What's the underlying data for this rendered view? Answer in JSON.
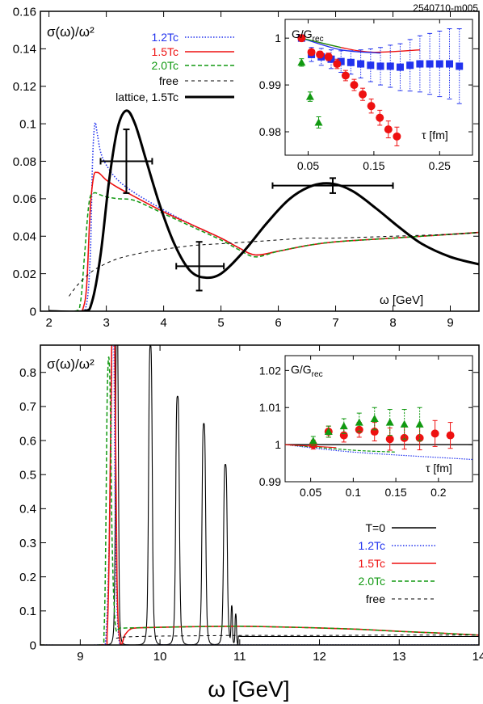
{
  "figure_id": "2540710-m005",
  "colors": {
    "blue": "#2233ee",
    "red": "#ee1111",
    "green": "#119911",
    "black": "#000000"
  },
  "chart_data": [
    {
      "type": "line",
      "panel": "top",
      "title": "σ(ω)/ω²",
      "ylabel": "σ(ω)/ω²",
      "xlabel": "ω [GeV]",
      "xlim": [
        1.85,
        9.5
      ],
      "ylim": [
        0,
        0.16
      ],
      "xticks": [
        2,
        3,
        4,
        5,
        6,
        7,
        8,
        9
      ],
      "yticks": [
        0,
        0.02,
        0.04,
        0.06,
        0.08,
        0.1,
        0.12,
        0.14,
        0.16
      ],
      "legend_position": "top-left",
      "series": [
        {
          "name": "1.2Tc",
          "color": "blue",
          "style": "dotted",
          "x": [
            2.0,
            2.5,
            2.65,
            2.72,
            2.76,
            2.8,
            2.84,
            2.9,
            3.0,
            3.2,
            3.5,
            4.0,
            4.5,
            5.0,
            5.3,
            5.6,
            6.0,
            6.5,
            7.0,
            8.0,
            9.0,
            9.5
          ],
          "y": [
            0,
            0,
            0.003,
            0.03,
            0.08,
            0.1,
            0.095,
            0.085,
            0.078,
            0.07,
            0.063,
            0.054,
            0.046,
            0.039,
            0.034,
            0.03,
            0.032,
            0.035,
            0.037,
            0.039,
            0.041,
            0.042
          ]
        },
        {
          "name": "1.5Tc",
          "color": "red",
          "style": "solid",
          "x": [
            2.0,
            2.5,
            2.6,
            2.66,
            2.72,
            2.78,
            2.84,
            2.9,
            3.0,
            3.2,
            3.5,
            4.0,
            4.5,
            5.0,
            5.3,
            5.6,
            6.0,
            6.5,
            7.0,
            8.0,
            9.0,
            9.5
          ],
          "y": [
            0,
            0,
            0.002,
            0.015,
            0.055,
            0.072,
            0.074,
            0.073,
            0.07,
            0.066,
            0.061,
            0.053,
            0.046,
            0.039,
            0.034,
            0.03,
            0.032,
            0.035,
            0.037,
            0.039,
            0.041,
            0.042
          ]
        },
        {
          "name": "2.0Tc",
          "color": "green",
          "style": "dashed",
          "x": [
            2.0,
            2.45,
            2.55,
            2.62,
            2.7,
            2.78,
            2.9,
            3.0,
            3.2,
            3.5,
            4.0,
            4.5,
            5.0,
            5.3,
            5.6,
            6.0,
            6.5,
            7.0,
            8.0,
            9.0,
            9.5
          ],
          "y": [
            0,
            0,
            0.005,
            0.03,
            0.058,
            0.063,
            0.062,
            0.061,
            0.06,
            0.059,
            0.052,
            0.045,
            0.038,
            0.033,
            0.029,
            0.032,
            0.035,
            0.037,
            0.039,
            0.041,
            0.042
          ]
        },
        {
          "name": "free",
          "color": "black",
          "style": "thin-dashed",
          "x": [
            2.35,
            2.5,
            2.7,
            2.9,
            3.2,
            3.6,
            4.0,
            4.5,
            5.0,
            5.5,
            6.0,
            6.5,
            7.0,
            8.0,
            9.0,
            9.5
          ],
          "y": [
            0.008,
            0.014,
            0.02,
            0.024,
            0.028,
            0.031,
            0.033,
            0.035,
            0.036,
            0.037,
            0.038,
            0.039,
            0.039,
            0.04,
            0.041,
            0.042
          ]
        },
        {
          "name": "lattice, 1.5Tc",
          "color": "black",
          "style": "thick",
          "x": [
            2.0,
            2.6,
            2.75,
            2.9,
            3.05,
            3.2,
            3.35,
            3.5,
            3.7,
            3.95,
            4.2,
            4.45,
            4.7,
            5.0,
            5.4,
            5.8,
            6.2,
            6.6,
            6.95,
            7.3,
            7.7,
            8.1,
            8.5,
            9.0,
            9.5
          ],
          "y": [
            0,
            0,
            0.005,
            0.03,
            0.07,
            0.098,
            0.107,
            0.1,
            0.08,
            0.055,
            0.035,
            0.022,
            0.018,
            0.02,
            0.032,
            0.047,
            0.06,
            0.067,
            0.068,
            0.064,
            0.055,
            0.045,
            0.036,
            0.029,
            0.025
          ]
        }
      ],
      "error_crosses": [
        {
          "x": 3.35,
          "y": 0.08,
          "xerr": [
            2.9,
            3.8
          ],
          "yerr": [
            0.063,
            0.097
          ]
        },
        {
          "x": 4.62,
          "y": 0.024,
          "xerr": [
            4.22,
            5.05
          ],
          "yerr": [
            0.011,
            0.037
          ]
        },
        {
          "x": 6.95,
          "y": 0.067,
          "xerr": [
            5.9,
            8.0
          ],
          "yerr": [
            0.063,
            0.071
          ]
        }
      ],
      "inset": {
        "type": "scatter",
        "ylabel": "G/G",
        "ylabel_sub": "rec",
        "xlabel": "τ [fm]",
        "xlim": [
          0.015,
          0.3
        ],
        "ylim": [
          0.975,
          1.004
        ],
        "xticks": [
          0.05,
          0.15,
          0.25
        ],
        "yticks": [
          0.98,
          0.99,
          1
        ],
        "series": [
          {
            "name": "1.2Tc",
            "color": "blue",
            "marker": "square",
            "x": [
              0.04,
              0.055,
              0.07,
              0.085,
              0.1,
              0.115,
              0.13,
              0.145,
              0.16,
              0.175,
              0.19,
              0.205,
              0.22,
              0.235,
              0.25,
              0.265,
              0.28
            ],
            "y": [
              1.0,
              0.9965,
              0.996,
              0.9955,
              0.995,
              0.9948,
              0.9945,
              0.9942,
              0.994,
              0.994,
              0.9938,
              0.9942,
              0.9945,
              0.9945,
              0.9945,
              0.9945,
              0.994
            ],
            "err": [
              0.0005,
              0.0015,
              0.0018,
              0.002,
              0.0023,
              0.0025,
              0.003,
              0.0035,
              0.004,
              0.0045,
              0.005,
              0.0055,
              0.006,
              0.0065,
              0.007,
              0.0075,
              0.008
            ]
          },
          {
            "name": "1.5Tc",
            "color": "red",
            "marker": "circle",
            "x": [
              0.04,
              0.055,
              0.068,
              0.081,
              0.094,
              0.107,
              0.12,
              0.133,
              0.146,
              0.159,
              0.172,
              0.185
            ],
            "y": [
              1.0,
              0.997,
              0.9965,
              0.996,
              0.9945,
              0.992,
              0.99,
              0.988,
              0.9855,
              0.983,
              0.9805,
              0.979
            ],
            "err": [
              0.0004,
              0.0006,
              0.0007,
              0.0008,
              0.001,
              0.0011,
              0.0012,
              0.0013,
              0.0015,
              0.0016,
              0.0018,
              0.002
            ]
          },
          {
            "name": "2.0Tc",
            "color": "green",
            "marker": "triangle",
            "x": [
              0.04,
              0.053,
              0.066
            ],
            "y": [
              0.9948,
              0.9875,
              0.982
            ],
            "err": [
              0.0008,
              0.001,
              0.0012
            ]
          }
        ],
        "lines": [
          {
            "color": "red",
            "x": [
              0.04,
              0.1,
              0.15,
              0.22
            ],
            "y": [
              1.0,
              0.998,
              0.997,
              0.9975
            ]
          },
          {
            "color": "blue",
            "x": [
              0.04,
              0.1,
              0.16
            ],
            "y": [
              1.0,
              0.9975,
              0.9968
            ]
          },
          {
            "color": "green",
            "x": [
              0.04,
              0.1
            ],
            "y": [
              1.0,
              0.998
            ]
          }
        ]
      }
    },
    {
      "type": "line",
      "panel": "bottom",
      "title": "σ(ω)/ω²",
      "ylabel": "σ(ω)/ω²",
      "xlabel": "ω [GeV]",
      "xlim": [
        8.5,
        14
      ],
      "ylim": [
        0,
        0.88
      ],
      "xticks": [
        9,
        10,
        11,
        12,
        13,
        14
      ],
      "yticks": [
        0,
        0.1,
        0.2,
        0.3,
        0.4,
        0.5,
        0.6,
        0.7,
        0.8
      ],
      "legend_position": "bottom-right",
      "series": [
        {
          "name": "T=0",
          "color": "black",
          "style": "solid",
          "peaks": [
            {
              "x": 9.46,
              "h": 0.95,
              "w": 0.02
            },
            {
              "x": 9.88,
              "h": 0.88,
              "w": 0.025
            },
            {
              "x": 10.22,
              "h": 0.73,
              "w": 0.025
            },
            {
              "x": 10.55,
              "h": 0.65,
              "w": 0.025
            },
            {
              "x": 10.82,
              "h": 0.53,
              "w": 0.025
            },
            {
              "x": 10.9,
              "h": 0.11,
              "w": 0.01
            },
            {
              "x": 10.95,
              "h": 0.09,
              "w": 0.01
            }
          ],
          "continuum": {
            "start": 10.98,
            "y": 0.025
          }
        },
        {
          "name": "1.2Tc",
          "color": "blue",
          "style": "dotted",
          "x": [
            8.5,
            9.2,
            9.32,
            9.38,
            9.4,
            9.42,
            9.44,
            9.48,
            9.6,
            10.0,
            11.0,
            12.0,
            13.0,
            14.0
          ],
          "y": [
            0,
            0,
            0.02,
            0.5,
            0.95,
            0.95,
            0.4,
            0.03,
            0.0,
            0.0,
            0.0,
            0.0,
            0.0,
            0.0
          ]
        },
        {
          "name": "1.5Tc",
          "color": "red",
          "style": "solid",
          "x": [
            8.5,
            9.25,
            9.34,
            9.38,
            9.4,
            9.43,
            9.46,
            9.5,
            9.56,
            9.62,
            9.7,
            10.0,
            10.5,
            11.0,
            11.5,
            12.0,
            12.5,
            13.0,
            13.5,
            14.0
          ],
          "y": [
            0,
            0,
            0.05,
            0.6,
            0.95,
            0.95,
            0.2,
            0.01,
            0.03,
            0.045,
            0.05,
            0.052,
            0.054,
            0.055,
            0.053,
            0.05,
            0.046,
            0.04,
            0.035,
            0.029
          ]
        },
        {
          "name": "2.0Tc",
          "color": "green",
          "style": "dashed",
          "x": [
            8.5,
            9.22,
            9.3,
            9.34,
            9.37,
            9.4,
            9.44,
            9.5,
            9.6,
            10.0,
            10.5,
            11.0,
            11.5,
            12.0,
            12.5,
            13.0,
            13.5,
            14.0
          ],
          "y": [
            0,
            0,
            0.05,
            0.75,
            0.79,
            0.3,
            0.06,
            0.05,
            0.05,
            0.052,
            0.054,
            0.055,
            0.053,
            0.05,
            0.046,
            0.04,
            0.035,
            0.029
          ]
        },
        {
          "name": "free",
          "color": "black",
          "style": "thin-dashed",
          "x": [
            9.45,
            9.6,
            10.0,
            10.5,
            11.0,
            12.0,
            13.0,
            14.0
          ],
          "y": [
            0.02,
            0.024,
            0.026,
            0.027,
            0.028,
            0.028,
            0.029,
            0.029
          ]
        }
      ],
      "inset": {
        "type": "scatter",
        "ylabel": "G/G",
        "ylabel_sub": "rec",
        "xlabel": "τ [fm]",
        "xlim": [
          0.02,
          0.24
        ],
        "ylim": [
          0.99,
          1.024
        ],
        "xticks": [
          0.05,
          0.1,
          0.15,
          0.2
        ],
        "yticks": [
          0.99,
          1,
          1.01,
          1.02
        ],
        "series": [
          {
            "name": "1.5Tc",
            "color": "red",
            "marker": "circle",
            "x": [
              0.053,
              0.071,
              0.089,
              0.107,
              0.125,
              0.143,
              0.16,
              0.178,
              0.196,
              0.214
            ],
            "y": [
              1.0,
              1.0035,
              1.0025,
              1.004,
              1.0035,
              1.0015,
              1.0018,
              1.0018,
              1.003,
              1.0025
            ],
            "err": [
              0.0012,
              0.0015,
              0.0018,
              0.002,
              0.0025,
              0.003,
              0.003,
              0.0032,
              0.0035,
              0.0035
            ]
          },
          {
            "name": "2.0Tc",
            "color": "green",
            "marker": "triangle",
            "x": [
              0.053,
              0.071,
              0.089,
              0.107,
              0.125,
              0.143,
              0.16,
              0.178
            ],
            "y": [
              1.001,
              1.0035,
              1.005,
              1.006,
              1.007,
              1.006,
              1.0055,
              1.0055
            ],
            "err": [
              0.0012,
              0.0015,
              0.002,
              0.0025,
              0.003,
              0.0035,
              0.004,
              0.0045
            ]
          }
        ],
        "lines": [
          {
            "color": "black",
            "x": [
              0.02,
              0.24
            ],
            "y": [
              1.0,
              1.0
            ]
          },
          {
            "color": "blue",
            "x": [
              0.02,
              0.1,
              0.24
            ],
            "y": [
              1.0,
              0.998,
              0.996
            ]
          },
          {
            "color": "green",
            "x": [
              0.02,
              0.1,
              0.15
            ],
            "y": [
              1.0,
              0.9985,
              0.998
            ]
          },
          {
            "color": "red",
            "x": [
              0.02,
              0.08
            ],
            "y": [
              1.0,
              0.9992
            ]
          }
        ]
      }
    }
  ]
}
